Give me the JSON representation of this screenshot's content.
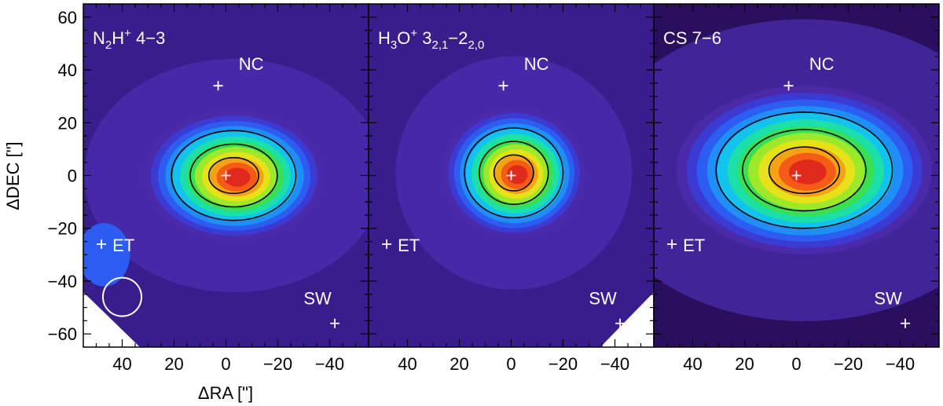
{
  "chart_data": [
    {
      "type": "heatmap",
      "panel_label": {
        "base": "N",
        "sub": "2",
        "mid": "H",
        "sup": "+",
        "tail": " 4−3"
      },
      "xlabel": "ΔRA [\"]",
      "ylabel": "ΔDEC [\"]",
      "xlim": [
        55,
        -55
      ],
      "ylim": [
        -65,
        65
      ],
      "xticks": [
        "40",
        "20",
        "0",
        "−20",
        "−40"
      ],
      "xtick_values": [
        40,
        20,
        0,
        -20,
        -40
      ],
      "yticks": [
        "60",
        "40",
        "20",
        "0",
        "−20",
        "−40",
        "−60"
      ],
      "ytick_values": [
        60,
        40,
        20,
        0,
        -20,
        -40,
        -60
      ],
      "background_color": "#3a1d8c",
      "peak": {
        "x": -3,
        "y": 0,
        "rx": 24,
        "ry": 17
      },
      "extra_blob": {
        "x": 47,
        "y": -30,
        "rx": 10,
        "ry": 12
      },
      "contour_levels": [
        0.25,
        0.5,
        0.75
      ],
      "markers": [
        {
          "label": "NC",
          "x": 3,
          "y": 34
        },
        {
          "label": "ET",
          "x": 48,
          "y": -26
        },
        {
          "label": "SW",
          "x": -42,
          "y": -56
        },
        {
          "label": "",
          "x": 0,
          "y": 0
        }
      ],
      "beam": {
        "x": 40,
        "y": -46,
        "radius": 7
      },
      "blank_corner": "bottom-left"
    },
    {
      "type": "heatmap",
      "panel_label": {
        "base": "H",
        "sub": "3",
        "mid": "O",
        "sup": "+",
        "tail": " 3",
        "sub2": "2,1",
        "tail2": "−2",
        "sub3": "2,0"
      },
      "xlabel": "",
      "ylabel": "",
      "xlim": [
        55,
        -55
      ],
      "ylim": [
        -65,
        65
      ],
      "xticks": [
        "40",
        "20",
        "0",
        "−20",
        "−40"
      ],
      "xtick_values": [
        40,
        20,
        0,
        -20,
        -40
      ],
      "background_color": "#3a1d8c",
      "peak": {
        "x": -1,
        "y": 1,
        "rx": 19,
        "ry": 17
      },
      "contour_levels": [
        0.25,
        0.5,
        0.75
      ],
      "markers": [
        {
          "label": "NC",
          "x": 3,
          "y": 34
        },
        {
          "label": "ET",
          "x": 48,
          "y": -26
        },
        {
          "label": "SW",
          "x": -42,
          "y": -56
        },
        {
          "label": "",
          "x": 0,
          "y": 0
        }
      ],
      "blank_corner": "bottom-right"
    },
    {
      "type": "heatmap",
      "panel_label": {
        "base": "CS 7−6"
      },
      "xlabel": "",
      "ylabel": "",
      "xlim": [
        55,
        -55
      ],
      "ylim": [
        -65,
        65
      ],
      "xticks": [
        "40",
        "20",
        "0",
        "−20",
        "−40"
      ],
      "xtick_values": [
        40,
        20,
        0,
        -20,
        -40
      ],
      "background_color": "#2a0f5e",
      "peak": {
        "x": -3,
        "y": 2,
        "rx": 34,
        "ry": 22
      },
      "contour_levels": [
        0.25,
        0.5,
        0.75
      ],
      "markers": [
        {
          "label": "NC",
          "x": 3,
          "y": 34
        },
        {
          "label": "ET",
          "x": 48,
          "y": -26
        },
        {
          "label": "SW",
          "x": -42,
          "y": -56
        },
        {
          "label": "",
          "x": 0,
          "y": 0
        }
      ]
    }
  ]
}
